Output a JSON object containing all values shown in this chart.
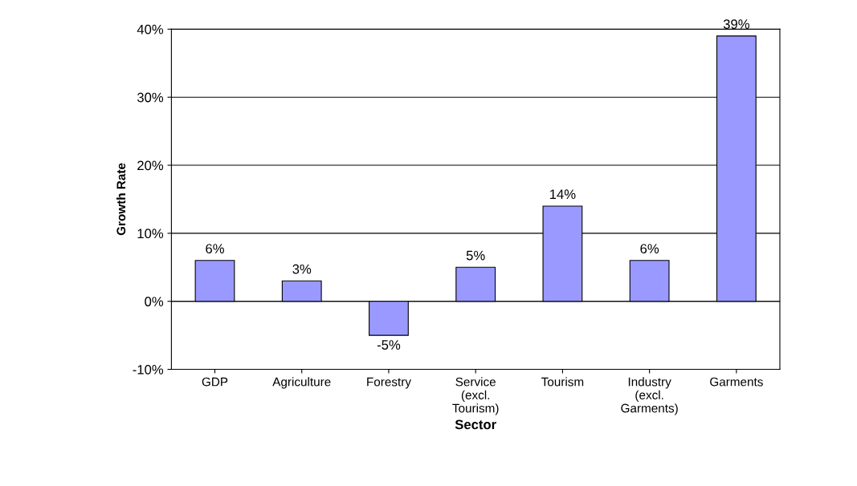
{
  "chart_data": {
    "type": "bar",
    "xlabel": "Sector",
    "ylabel": "Growth Rate",
    "categories": [
      "GDP",
      "Agriculture",
      "Forestry",
      "Service\n(excl.\nTourism)",
      "Tourism",
      "Industry\n(excl.\nGarments)",
      "Garments"
    ],
    "values": [
      6,
      3,
      -5,
      5,
      14,
      6,
      39
    ],
    "value_labels": [
      "6%",
      "3%",
      "-5%",
      "5%",
      "14%",
      "6%",
      "39%"
    ],
    "color": "#9999ff",
    "ylim": [
      -10,
      40
    ],
    "yticks": [
      {
        "value": -10,
        "label": "-10%"
      },
      {
        "value": 0,
        "label": "0%"
      },
      {
        "value": 10,
        "label": "10%"
      },
      {
        "value": 20,
        "label": "20%"
      },
      {
        "value": 30,
        "label": "30%"
      },
      {
        "value": 40,
        "label": "40%"
      }
    ],
    "grid": "y"
  }
}
